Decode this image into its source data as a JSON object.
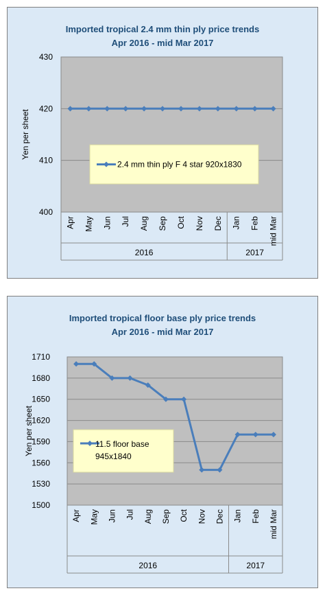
{
  "chart_data": [
    {
      "type": "line",
      "title": "Imported tropical 2.4 mm thin ply price trends",
      "subtitle": "Apr 2016 - mid Mar 2017",
      "ylabel": "Yen per sheet",
      "xlabel": "",
      "ylim": [
        400,
        430
      ],
      "yticks": [
        400,
        410,
        420,
        430
      ],
      "categories": [
        "Apr",
        "May",
        "Jun",
        "Jul",
        "Aug",
        "Sep",
        "Oct",
        "Nov",
        "Dec",
        "Jan",
        "Feb",
        "mid Mar"
      ],
      "year_groups": [
        {
          "label": "2016",
          "count": 9
        },
        {
          "label": "2017",
          "count": 3
        }
      ],
      "series": [
        {
          "name": "2.4 mm thin ply F 4 star 920x1830",
          "values": [
            420,
            420,
            420,
            420,
            420,
            420,
            420,
            420,
            420,
            420,
            420,
            420
          ]
        }
      ],
      "legend_position": "center",
      "colors": {
        "line": "#4a7ebb",
        "plot_bg": "#bfbfbf",
        "legend_bg": "#ffffcc",
        "title": "#1f4e79",
        "panel_bg": "#dbe9f6"
      },
      "grid": true
    },
    {
      "type": "line",
      "title": "Imported tropical floor base ply price trends",
      "subtitle": "Apr 2016 - mid Mar 2017",
      "ylabel": "Yen per sheet",
      "xlabel": "",
      "ylim": [
        1500,
        1710
      ],
      "yticks": [
        1500,
        1530,
        1560,
        1590,
        1620,
        1650,
        1680,
        1710
      ],
      "categories": [
        "Apr",
        "May",
        "Jun",
        "Jul",
        "Aug",
        "Sep",
        "Oct",
        "Nov",
        "Dec",
        "Jan",
        "Feb",
        "mid Mar"
      ],
      "year_groups": [
        {
          "label": "2016",
          "count": 9
        },
        {
          "label": "2017",
          "count": 3
        }
      ],
      "series": [
        {
          "name": "11.5 floor base 945x1840",
          "name_lines": [
            "11.5 floor base",
            "945x1840"
          ],
          "values": [
            1700,
            1700,
            1680,
            1680,
            1670,
            1650,
            1650,
            1550,
            1550,
            1600,
            1600,
            1600
          ]
        }
      ],
      "legend_position": "center-left",
      "colors": {
        "line": "#4a7ebb",
        "plot_bg": "#bfbfbf",
        "legend_bg": "#ffffcc",
        "title": "#1f4e79",
        "panel_bg": "#dbe9f6"
      },
      "grid": true
    }
  ]
}
